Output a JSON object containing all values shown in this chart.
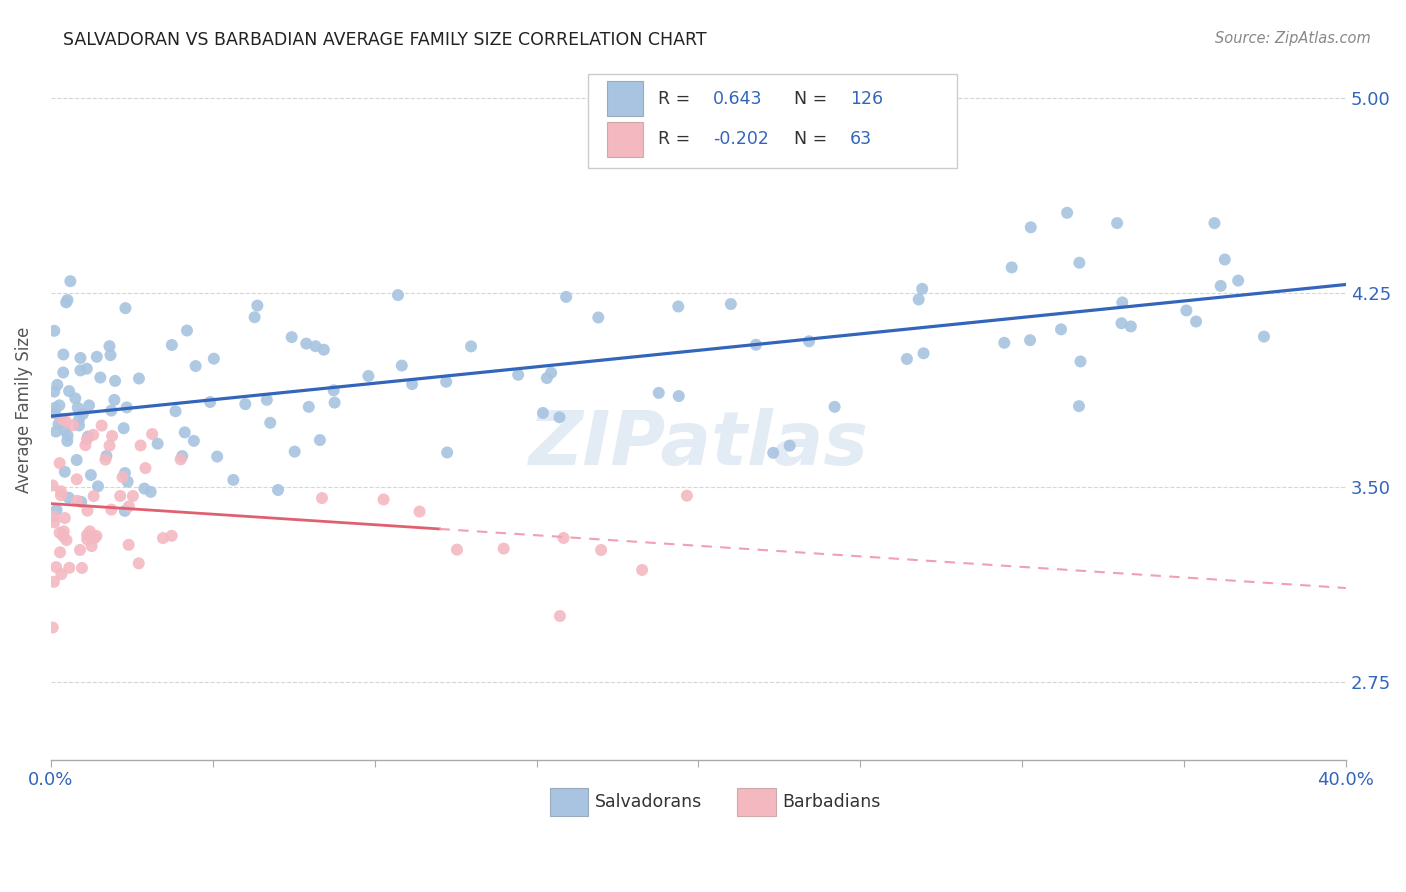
{
  "title": "SALVADORAN VS BARBADIAN AVERAGE FAMILY SIZE CORRELATION CHART",
  "source": "Source: ZipAtlas.com",
  "ylabel": "Average Family Size",
  "xlim": [
    0.0,
    0.4
  ],
  "ylim": [
    2.45,
    5.15
  ],
  "yticks": [
    2.75,
    3.5,
    4.25,
    5.0
  ],
  "xticks": [
    0.0,
    0.05,
    0.1,
    0.15,
    0.2,
    0.25,
    0.3,
    0.35,
    0.4
  ],
  "xtick_labels": [
    "0.0%",
    "",
    "",
    "",
    "",
    "",
    "",
    "",
    "40.0%"
  ],
  "salvadoran_color": "#a8c4e0",
  "barbadian_color": "#f4b8c1",
  "salvadoran_line_color": "#3366bb",
  "barbadian_line_color": "#e06070",
  "barbadian_dashed_color": "#f0a0b0",
  "R_salvadoran": 0.643,
  "N_salvadoran": 126,
  "R_barbadian": -0.202,
  "N_barbadian": 63,
  "legend_label_1": "Salvadorans",
  "legend_label_2": "Barbadians",
  "watermark": "ZIPatlas",
  "title_color": "#222222",
  "blue_text_color": "#3366bb",
  "axis_color": "#aaaaaa",
  "grid_color": "#cccccc",
  "ylabel_color": "#555555",
  "background_color": "#ffffff"
}
